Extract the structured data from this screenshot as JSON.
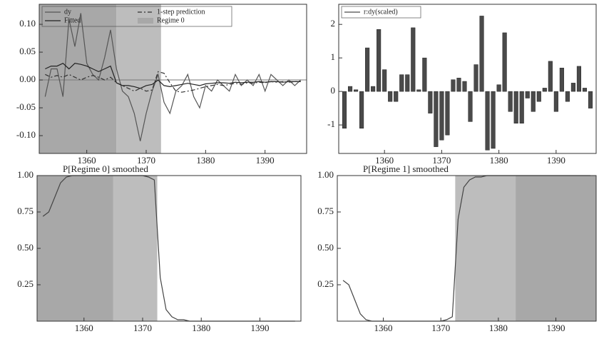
{
  "chart_data": [
    {
      "type": "line",
      "x": [
        1353,
        1354,
        1355,
        1356,
        1357,
        1358,
        1359,
        1360,
        1361,
        1362,
        1363,
        1364,
        1365,
        1366,
        1367,
        1368,
        1369,
        1370,
        1371,
        1372,
        1373,
        1374,
        1375,
        1376,
        1377,
        1378,
        1379,
        1380,
        1381,
        1382,
        1383,
        1384,
        1385,
        1386,
        1387,
        1388,
        1389,
        1390,
        1391,
        1392,
        1393,
        1394,
        1395,
        1396
      ],
      "series": [
        {
          "name": "dy",
          "color": "#555555",
          "style": "solid",
          "values": [
            -0.03,
            0.02,
            0.02,
            -0.03,
            0.11,
            0.06,
            0.12,
            0.03,
            0.01,
            0.0,
            0.04,
            0.09,
            0.02,
            -0.02,
            -0.03,
            -0.06,
            -0.11,
            -0.06,
            -0.02,
            0.01,
            -0.04,
            -0.06,
            -0.02,
            -0.01,
            0.01,
            -0.03,
            -0.05,
            -0.01,
            -0.02,
            0.0,
            -0.01,
            -0.02,
            0.01,
            -0.01,
            0.0,
            -0.01,
            0.01,
            -0.02,
            0.01,
            0.0,
            -0.01,
            0.0,
            -0.01,
            0.0
          ]
        },
        {
          "name": "1-step prediction",
          "color": "#333333",
          "style": "dash-dot",
          "values": [
            0.01,
            0.005,
            0.008,
            0.005,
            0.01,
            0.005,
            0.0,
            0.005,
            0.008,
            0.005,
            0.0,
            0.005,
            -0.005,
            -0.01,
            -0.015,
            -0.02,
            -0.015,
            -0.02,
            -0.018,
            0.015,
            0.012,
            -0.005,
            -0.02,
            -0.022,
            -0.02,
            -0.018,
            -0.015,
            -0.012,
            -0.01,
            -0.008,
            -0.01,
            -0.008,
            -0.006,
            -0.008,
            -0.005,
            -0.006,
            -0.004,
            -0.005,
            -0.003,
            -0.004,
            -0.003,
            -0.004,
            -0.003,
            -0.003
          ]
        },
        {
          "name": "Fitted",
          "color": "#222222",
          "style": "solid",
          "values": [
            0.02,
            0.025,
            0.025,
            0.03,
            0.02,
            0.03,
            0.028,
            0.025,
            0.02,
            0.015,
            0.02,
            0.025,
            -0.005,
            -0.01,
            -0.01,
            -0.012,
            -0.015,
            -0.01,
            -0.008,
            0.0,
            -0.01,
            -0.012,
            -0.01,
            -0.008,
            -0.006,
            -0.008,
            -0.01,
            -0.007,
            -0.006,
            -0.005,
            -0.005,
            -0.006,
            -0.004,
            -0.005,
            -0.004,
            -0.004,
            -0.003,
            -0.004,
            -0.003,
            -0.003,
            -0.004,
            -0.003,
            -0.003,
            -0.003
          ]
        }
      ],
      "shading": {
        "name": "Regime 0",
        "spans": [
          {
            "start": 1352,
            "end": 1365,
            "color": "#a8a8a8"
          },
          {
            "start": 1365,
            "end": 1372.5,
            "color": "#bdbdbd"
          }
        ]
      },
      "reference_lines": [
        0
      ],
      "xlim": [
        1352,
        1397
      ],
      "xticks": [
        1360,
        1370,
        1380,
        1390
      ],
      "ylim": [
        -0.132,
        0.136
      ],
      "yticks": [
        {
          "value": -0.1,
          "label": "-0.10"
        },
        {
          "value": -0.05,
          "label": "-0.05"
        },
        {
          "value": 0,
          "label": "0.00"
        },
        {
          "value": 0.05,
          "label": "0.05"
        },
        {
          "value": 0.1,
          "label": "0.10"
        }
      ],
      "legend": "top-left"
    },
    {
      "type": "bar",
      "x": [
        1353,
        1354,
        1355,
        1356,
        1357,
        1358,
        1359,
        1360,
        1361,
        1362,
        1363,
        1364,
        1365,
        1366,
        1367,
        1368,
        1369,
        1370,
        1371,
        1372,
        1373,
        1374,
        1375,
        1376,
        1377,
        1378,
        1379,
        1380,
        1381,
        1382,
        1383,
        1384,
        1385,
        1386,
        1387,
        1388,
        1389,
        1390,
        1391,
        1392,
        1393,
        1394,
        1395,
        1396
      ],
      "series": [
        {
          "name": "r:dy(scaled)",
          "color": "#4a4a4a",
          "values": [
            -1.1,
            0.15,
            0.05,
            -1.1,
            1.3,
            0.15,
            1.85,
            0.65,
            -0.3,
            -0.3,
            0.5,
            0.5,
            1.9,
            0.05,
            1.0,
            -0.65,
            -1.65,
            -1.45,
            -1.3,
            0.35,
            0.4,
            0.3,
            -0.9,
            0.8,
            2.25,
            -1.75,
            -1.7,
            0.2,
            1.75,
            -0.6,
            -0.95,
            -0.95,
            -0.2,
            -0.6,
            -0.3,
            0.1,
            0.9,
            -0.6,
            0.7,
            -0.3,
            0.25,
            0.75,
            0.1,
            -0.5
          ]
        }
      ],
      "xlim": [
        1352,
        1397
      ],
      "xticks": [
        1360,
        1370,
        1380,
        1390
      ],
      "ylim": [
        -1.85,
        2.6
      ],
      "yticks": [
        -1,
        0,
        1,
        2
      ],
      "legend": "top-left"
    },
    {
      "type": "line",
      "title": "P[Regime 0] smoothed",
      "x": [
        1353,
        1354,
        1355,
        1356,
        1357,
        1358,
        1359,
        1360,
        1361,
        1362,
        1363,
        1364,
        1365,
        1366,
        1367,
        1368,
        1369,
        1370,
        1371,
        1372,
        1373,
        1374,
        1375,
        1376,
        1377,
        1378,
        1379,
        1380,
        1381,
        1382,
        1383,
        1384,
        1385,
        1386,
        1387,
        1388,
        1389,
        1390,
        1391,
        1392,
        1393,
        1394,
        1395,
        1396
      ],
      "series": [
        {
          "color": "#444444",
          "style": "solid",
          "values": [
            0.72,
            0.75,
            0.85,
            0.95,
            0.99,
            1,
            1,
            1,
            1,
            1,
            1,
            1,
            1,
            1,
            1,
            1,
            1,
            1,
            0.99,
            0.97,
            0.3,
            0.08,
            0.03,
            0.01,
            0.01,
            0,
            0,
            0,
            0,
            0,
            0,
            0,
            0,
            0,
            0,
            0,
            0,
            0,
            0,
            0,
            0,
            0,
            0,
            0
          ]
        }
      ],
      "shading": {
        "spans": [
          {
            "start": 1352,
            "end": 1365,
            "color": "#a8a8a8"
          },
          {
            "start": 1365,
            "end": 1372.5,
            "color": "#bdbdbd"
          }
        ]
      },
      "xlim": [
        1352,
        1397
      ],
      "xticks": [
        1360,
        1370,
        1380,
        1390
      ],
      "ylim": [
        0,
        1
      ],
      "yticks": [
        {
          "value": 0.25,
          "label": "0.25"
        },
        {
          "value": 0.5,
          "label": "0.50"
        },
        {
          "value": 0.75,
          "label": "0.75"
        },
        {
          "value": 1,
          "label": "1.00"
        }
      ]
    },
    {
      "type": "line",
      "title": "P[Regime 1] smoothed",
      "x": [
        1353,
        1354,
        1355,
        1356,
        1357,
        1358,
        1359,
        1360,
        1361,
        1362,
        1363,
        1364,
        1365,
        1366,
        1367,
        1368,
        1369,
        1370,
        1371,
        1372,
        1373,
        1374,
        1375,
        1376,
        1377,
        1378,
        1379,
        1380,
        1381,
        1382,
        1383,
        1384,
        1385,
        1386,
        1387,
        1388,
        1389,
        1390,
        1391,
        1392,
        1393,
        1394,
        1395,
        1396
      ],
      "series": [
        {
          "color": "#444444",
          "style": "solid",
          "values": [
            0.28,
            0.25,
            0.15,
            0.05,
            0.01,
            0,
            0,
            0,
            0,
            0,
            0,
            0,
            0,
            0,
            0,
            0,
            0,
            0,
            0.01,
            0.03,
            0.7,
            0.92,
            0.97,
            0.99,
            0.99,
            1,
            1,
            1,
            1,
            1,
            1,
            1,
            1,
            1,
            1,
            1,
            1,
            1,
            1,
            1,
            1,
            1,
            1,
            1
          ]
        }
      ],
      "shading": {
        "spans": [
          {
            "start": 1372.5,
            "end": 1383,
            "color": "#bdbdbd"
          },
          {
            "start": 1383,
            "end": 1397,
            "color": "#a8a8a8"
          }
        ]
      },
      "xlim": [
        1352,
        1397
      ],
      "xticks": [
        1360,
        1370,
        1380,
        1390
      ],
      "ylim": [
        0,
        1
      ],
      "yticks": [
        {
          "value": 0.25,
          "label": "0.25"
        },
        {
          "value": 0.5,
          "label": "0.50"
        },
        {
          "value": 0.75,
          "label": "0.75"
        },
        {
          "value": 1,
          "label": "1.00"
        }
      ]
    }
  ]
}
